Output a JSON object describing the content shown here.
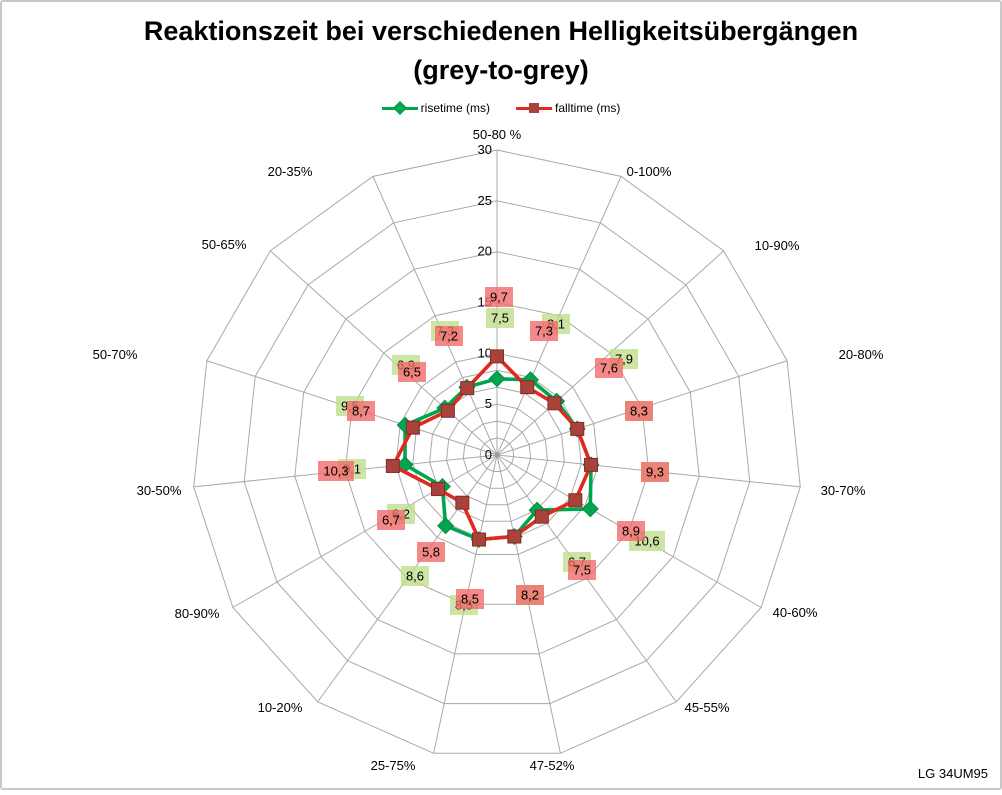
{
  "title": {
    "line1": "Reaktionszeit bei verschiedenen Helligkeitsübergängen",
    "line2": "(grey-to-grey)"
  },
  "legend": [
    {
      "label": "risetime (ms)",
      "marker": "diamond"
    },
    {
      "label": "falltime (ms)",
      "marker": "square"
    }
  ],
  "branding": "LG 34UM95",
  "axis": {
    "min": 0,
    "max": 30,
    "major_step": 5,
    "ticks": [
      "0",
      "5",
      "10",
      "15",
      "20",
      "25",
      "30"
    ]
  },
  "chart_data": {
    "type": "radar",
    "categories": [
      "50-80 %",
      "0-100%",
      "10-90%",
      "20-80%",
      "30-70%",
      "40-60%",
      "45-55%",
      "47-52%",
      "25-75%",
      "10-20%",
      "80-90%",
      "30-50%",
      "50-70%",
      "50-65%",
      "20-35%"
    ],
    "series": [
      {
        "name": "risetime (ms)",
        "values": [
          7.5,
          8.1,
          7.9,
          8.3,
          9.3,
          10.6,
          6.7,
          8.2,
          8.5,
          8.6,
          6.2,
          9.1,
          9.5,
          6.9,
          7.3
        ],
        "point_labels": [
          "7,5",
          "8,1",
          "7,9",
          "8,3",
          "9,3",
          "10,6",
          "6,7",
          "8,2",
          "8,5",
          "8,6",
          "6,2",
          "9,1",
          "9,5",
          "6,9",
          "7,3"
        ]
      },
      {
        "name": "falltime (ms)",
        "values": [
          9.7,
          7.3,
          7.6,
          8.3,
          9.3,
          8.9,
          7.5,
          8.2,
          8.5,
          5.8,
          6.7,
          10.3,
          8.7,
          6.5,
          7.2
        ],
        "point_labels": [
          "9,7",
          "7,3",
          "7,6",
          "8,3",
          "9,3",
          "8,9",
          "7,5",
          "8,2",
          "8,5",
          "5,8",
          "6,7",
          "10,3",
          "8,7",
          "6,5",
          "7,2"
        ]
      }
    ],
    "axis_range": [
      0,
      30
    ],
    "grid": true,
    "legend_position": "top"
  },
  "colors": {
    "rise_line": "#00A64F",
    "rise_marker_fill": "#00A64F",
    "rise_marker_stroke": "#078A43",
    "fall_line": "#E02A1E",
    "fall_marker_fill": "#A8423A",
    "fall_marker_stroke": "#7E2F29",
    "rise_label_box": "#BFDE8E",
    "fall_label_box": "#F26B6B",
    "grid": "#A9A9A9",
    "text": "#000000"
  }
}
